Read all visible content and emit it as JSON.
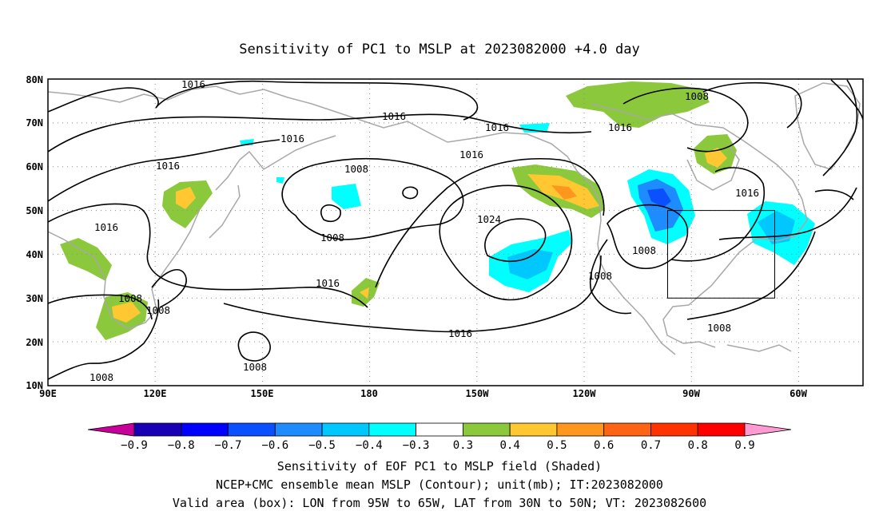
{
  "title": "Sensitivity of PC1 to MSLP at 2023082000 +4.0 day",
  "lat_labels": [
    "80N",
    "70N",
    "60N",
    "50N",
    "40N",
    "30N",
    "20N",
    "10N"
  ],
  "lon_labels": [
    "90E",
    "120E",
    "150E",
    "180",
    "150W",
    "120W",
    "90W",
    "60W"
  ],
  "contour_labels": [
    "1016",
    "1016",
    "1016",
    "1016",
    "1016",
    "1016",
    "1016",
    "1016",
    "1016",
    "1016",
    "1016",
    "1024",
    "1008",
    "1008",
    "1008",
    "1008",
    "1008",
    "1008",
    "1008",
    "1008",
    "1008"
  ],
  "colorbar": {
    "labels": [
      "-0.9",
      "-0.8",
      "-0.7",
      "-0.6",
      "-0.5",
      "-0.4",
      "-0.3",
      "0.3",
      "0.4",
      "0.5",
      "0.6",
      "0.7",
      "0.8",
      "0.9"
    ],
    "colors": [
      "#c8009a",
      "#1a00b4",
      "#0000ff",
      "#0a50ff",
      "#1e8cff",
      "#00c8ff",
      "#00ffff",
      "#ffffff",
      "#8cc83c",
      "#ffc832",
      "#ff961e",
      "#ff6414",
      "#ff3200",
      "#ff0000",
      "#ff9ad2"
    ]
  },
  "footer": {
    "line1": "Sensitivity of EOF PC1 to MSLP field (Shaded)",
    "line2": "NCEP+CMC ensemble mean MSLP (Contour); unit(mb); IT:2023082000",
    "line3": "Valid area (box): LON from 95W to 65W, LAT from 30N to 50N; VT: 2023082600"
  }
}
